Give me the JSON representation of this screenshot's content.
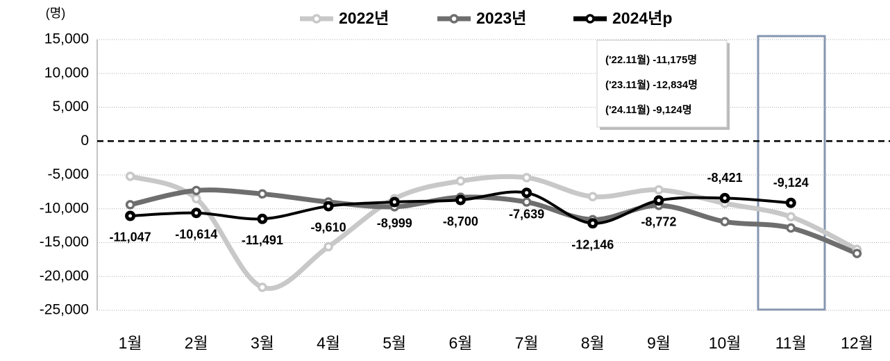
{
  "chart_data": {
    "type": "line",
    "unit_label": "(명)",
    "categories": [
      "1월",
      "2월",
      "3월",
      "4월",
      "5월",
      "6월",
      "7월",
      "8월",
      "9월",
      "10월",
      "11월",
      "12월"
    ],
    "series": [
      {
        "name": "2022년",
        "color": "#c8c8c8",
        "values": [
          -5200,
          -8500,
          -21600,
          -15600,
          -8500,
          -5900,
          -5400,
          -8200,
          -7200,
          -9200,
          -11175,
          -16000
        ]
      },
      {
        "name": "2023년",
        "color": "#6e6e6e",
        "values": [
          -9400,
          -7300,
          -7800,
          -9000,
          -9700,
          -8300,
          -9000,
          -11600,
          -9500,
          -11900,
          -12834,
          -16600
        ]
      },
      {
        "name": "2024년p",
        "color": "#000000",
        "values": [
          -11047,
          -10614,
          -11491,
          -9610,
          -8999,
          -8700,
          -7639,
          -12146,
          -8772,
          -8421,
          -9124,
          null
        ],
        "value_labels": [
          "-11,047",
          "-10,614",
          "-11,491",
          "-9,610",
          "-8,999",
          "-8,700",
          "-7,639",
          "-12,146",
          "-8,772",
          "-8,421",
          "-9,124",
          null
        ]
      }
    ],
    "annotations": [
      "('22.11월)  -11,175명",
      "('23.11월)  -12,834명",
      "('24.11월)    -9,124명"
    ],
    "ylim": [
      -25000,
      15000
    ],
    "yticks": [
      {
        "value": 15000,
        "label": "15,000"
      },
      {
        "value": 10000,
        "label": "10,000"
      },
      {
        "value": 5000,
        "label": "5,000"
      },
      0,
      {
        "value": -5000,
        "label": "-5,000"
      },
      {
        "value": -10000,
        "label": "-10,000"
      },
      {
        "value": -15000,
        "label": "-15,000"
      },
      {
        "value": -20000,
        "label": "-20,000"
      },
      {
        "value": -25000,
        "label": "-25,000"
      }
    ],
    "grid": true
  }
}
